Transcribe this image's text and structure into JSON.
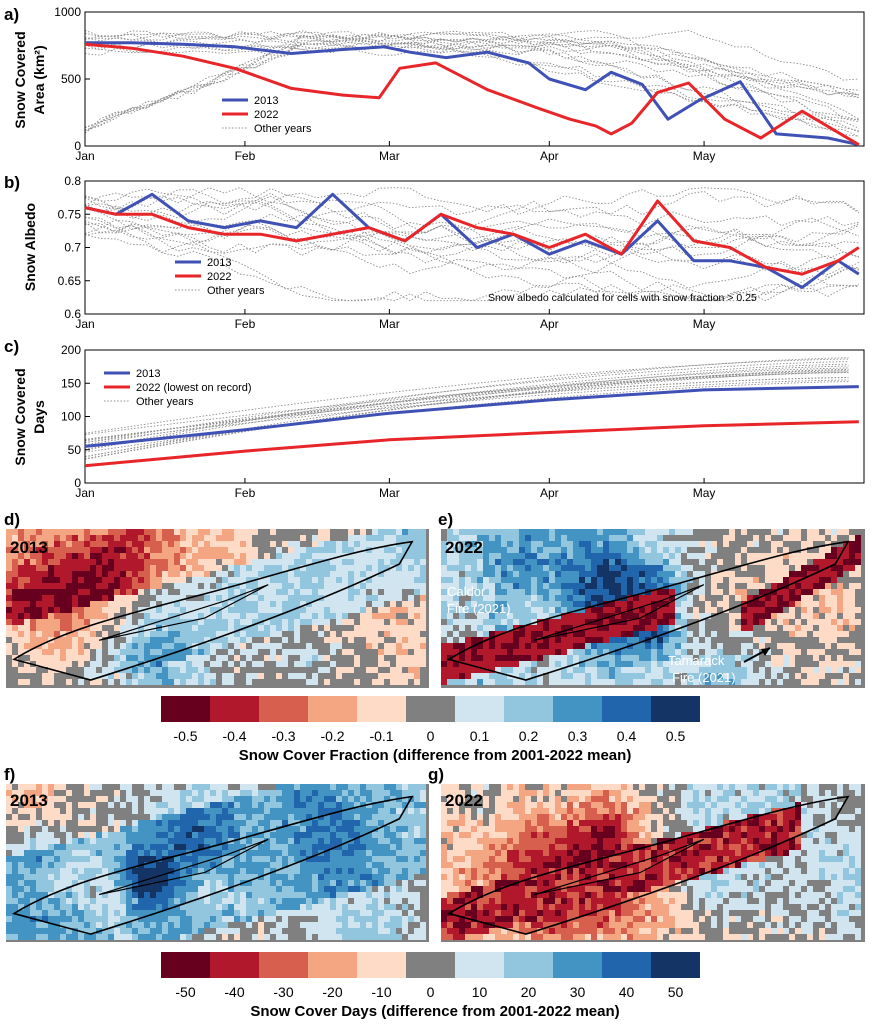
{
  "chart_data": [
    {
      "panel": "a)",
      "type": "line",
      "ylabel": [
        "Snow Covered",
        "Area (km²)"
      ],
      "ylim": [
        0,
        1000
      ],
      "yticks": [
        "0",
        "500",
        "1000"
      ],
      "x_months": [
        "Jan",
        "Feb",
        "Mar",
        "Apr",
        "May"
      ],
      "legend_position": "center-left",
      "series": [
        {
          "name": "2013",
          "color": "#3f51b5",
          "style": "solid",
          "x": [
            "Jan 1",
            "Jan 10",
            "Jan 20",
            "Jan 30",
            "Feb 10",
            "Feb 20",
            "Feb 28",
            "Mar 5",
            "Mar 12",
            "Mar 20",
            "Mar 28",
            "Apr 1",
            "Apr 8",
            "Apr 13",
            "Apr 19",
            "Apr 24",
            "Apr 30",
            "May 8",
            "May 15",
            "May 25",
            "May 31"
          ],
          "y": [
            770,
            770,
            760,
            740,
            690,
            720,
            740,
            700,
            660,
            700,
            620,
            500,
            420,
            550,
            460,
            200,
            340,
            480,
            90,
            60,
            10
          ]
        },
        {
          "name": "2022",
          "color": "#e8262a",
          "style": "solid",
          "x": [
            "Jan 1",
            "Jan 10",
            "Jan 20",
            "Jan 30",
            "Feb 10",
            "Feb 20",
            "Feb 27",
            "Mar 3",
            "Mar 10",
            "Mar 20",
            "Mar 30",
            "Apr 5",
            "Apr 10",
            "Apr 13",
            "Apr 17",
            "Apr 22",
            "Apr 28",
            "May 5",
            "May 12",
            "May 20",
            "May 31"
          ],
          "y": [
            760,
            730,
            670,
            580,
            430,
            380,
            360,
            580,
            620,
            420,
            280,
            200,
            150,
            90,
            170,
            400,
            470,
            200,
            60,
            260,
            10
          ]
        }
      ],
      "other_years": {
        "name": "Other years",
        "color": "#8c8c8c",
        "style": "dotted"
      }
    },
    {
      "panel": "b)",
      "type": "line",
      "ylabel": [
        "Snow Albedo"
      ],
      "ylim": [
        0.6,
        0.8
      ],
      "yticks": [
        "0.6",
        "0.65",
        "0.7",
        "0.75",
        "0.8"
      ],
      "x_months": [
        "Jan",
        "Feb",
        "Mar",
        "Apr",
        "May"
      ],
      "legend_position": "center-left",
      "annotation": "Snow albedo calculated for cells with snow fraction > 0.25",
      "series": [
        {
          "name": "2013",
          "color": "#3f51b5",
          "style": "solid",
          "x": [
            "Jan 1",
            "Jan 7",
            "Jan 14",
            "Jan 21",
            "Jan 28",
            "Feb 4",
            "Feb 11",
            "Feb 18",
            "Feb 25",
            "Mar 4",
            "Mar 11",
            "Mar 18",
            "Mar 25",
            "Apr 1",
            "Apr 8",
            "Apr 15",
            "Apr 22",
            "Apr 29",
            "May 6",
            "May 13",
            "May 20",
            "May 27",
            "May 31"
          ],
          "y": [
            0.76,
            0.75,
            0.78,
            0.74,
            0.73,
            0.74,
            0.73,
            0.78,
            0.73,
            0.71,
            0.75,
            0.7,
            0.72,
            0.69,
            0.71,
            0.69,
            0.74,
            0.68,
            0.68,
            0.67,
            0.64,
            0.68,
            0.66
          ]
        },
        {
          "name": "2022",
          "color": "#e8262a",
          "style": "solid",
          "x": [
            "Jan 1",
            "Jan 7",
            "Jan 14",
            "Jan 21",
            "Jan 28",
            "Feb 4",
            "Feb 11",
            "Feb 18",
            "Feb 25",
            "Mar 4",
            "Mar 11",
            "Mar 18",
            "Mar 25",
            "Apr 1",
            "Apr 8",
            "Apr 15",
            "Apr 22",
            "Apr 29",
            "May 6",
            "May 13",
            "May 20",
            "May 27",
            "May 31"
          ],
          "y": [
            0.76,
            0.75,
            0.75,
            0.73,
            0.72,
            0.72,
            0.71,
            0.72,
            0.73,
            0.71,
            0.75,
            0.73,
            0.72,
            0.7,
            0.72,
            0.69,
            0.77,
            0.71,
            0.7,
            0.67,
            0.66,
            0.68,
            0.7
          ]
        }
      ],
      "other_years": {
        "name": "Other years",
        "color": "#8c8c8c",
        "style": "dotted"
      }
    },
    {
      "panel": "c)",
      "type": "line",
      "ylabel": [
        "Snow Covered",
        "Days"
      ],
      "ylim": [
        0,
        200
      ],
      "yticks": [
        "0",
        "50",
        "100",
        "150",
        "200"
      ],
      "x_months": [
        "Jan",
        "Feb",
        "Mar",
        "Apr",
        "May"
      ],
      "legend_position": "top-left",
      "series": [
        {
          "name": "2013",
          "color": "#3f51b5",
          "style": "solid",
          "x": [
            "Jan 1",
            "Feb 1",
            "Mar 1",
            "Apr 1",
            "May 1",
            "May 31"
          ],
          "y": [
            55,
            80,
            105,
            125,
            140,
            145
          ]
        },
        {
          "name": "2022 (lowest on record)",
          "color": "#e8262a",
          "style": "solid",
          "x": [
            "Jan 1",
            "Feb 1",
            "Mar 1",
            "Apr 1",
            "May 1",
            "May 31"
          ],
          "y": [
            26,
            48,
            65,
            76,
            86,
            92
          ]
        }
      ],
      "other_years": {
        "name": "Other years",
        "color": "#8c8c8c",
        "style": "dotted"
      }
    },
    {
      "panel": "d)",
      "type": "heatmap",
      "map_label": "2013",
      "quantity": "Snow Cover Fraction (difference from 2001-2022 mean)"
    },
    {
      "panel": "e)",
      "type": "heatmap",
      "map_label": "2022",
      "annotations": [
        "Caldor",
        "Fire (2021)",
        "Tamarack",
        "Fire (2021)"
      ],
      "quantity": "Snow Cover Fraction (difference from 2001-2022 mean)"
    },
    {
      "panel": "f)",
      "type": "heatmap",
      "map_label": "2013",
      "quantity": "Snow Cover Days (difference from 2001-2022 mean)"
    },
    {
      "panel": "g)",
      "type": "heatmap",
      "map_label": "2022",
      "quantity": "Snow Cover Days (difference from 2001-2022 mean)"
    }
  ],
  "colorbars": [
    {
      "title": "Snow Cover Fraction (difference from 2001-2022 mean)",
      "tick_labels": [
        "-0.5",
        "-0.4",
        "-0.3",
        "-0.2",
        "-0.1",
        "0",
        "0.1",
        "0.2",
        "0.3",
        "0.4",
        "0.5"
      ]
    },
    {
      "title": "Snow Cover Days (difference from 2001-2022 mean)",
      "tick_labels": [
        "-50",
        "-40",
        "-30",
        "-20",
        "-10",
        "0",
        "10",
        "20",
        "30",
        "40",
        "50"
      ]
    }
  ],
  "colors": {
    "line_2013": "#3f51b5",
    "line_2022": "#e8262a",
    "other_years": "#8c8c8c",
    "scale": [
      "#67001f",
      "#b2182b",
      "#d6604d",
      "#f4a582",
      "#fddbc7",
      "#808080",
      "#d1e5f0",
      "#92c5de",
      "#4393c3",
      "#2166ac",
      "#153466"
    ]
  }
}
